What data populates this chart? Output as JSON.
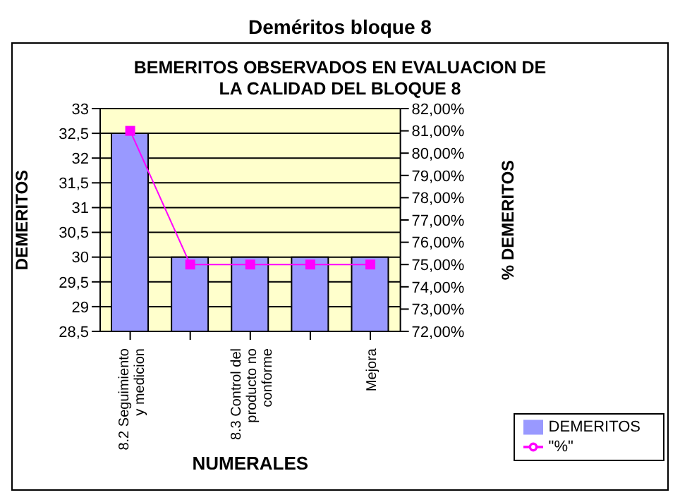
{
  "chart_data": {
    "type": "bar",
    "title": "Deméritos bloque 8",
    "subtitle": "BEMERITOS OBSERVADOS EN EVALUACION DE LA CALIDAD DEL BLOQUE 8",
    "xlabel": "NUMERALES",
    "ylabel": "DEMERITOS",
    "y2label": "% DEMERITOS",
    "categories": [
      "8.2 Seguimiento y medicion",
      null,
      "8.3 Control del producto no conforme",
      null,
      "Mejora"
    ],
    "series": [
      {
        "name": "DEMERITOS",
        "color": "#9999ff",
        "values": [
          32.5,
          30,
          30,
          30,
          30
        ]
      },
      {
        "name": "\"%\"",
        "type": "line",
        "axis": "y2",
        "color": "#ff00ff",
        "marker": "square",
        "values": [
          81,
          75,
          75,
          75,
          75
        ]
      }
    ],
    "ylim": [
      28.5,
      33
    ],
    "yticks": [
      {
        "value": 28.5,
        "label": "28,5"
      },
      29,
      {
        "value": 29.5,
        "label": "29,5"
      },
      30,
      {
        "value": 30.5,
        "label": "30,5"
      },
      31,
      {
        "value": 31.5,
        "label": "31,5"
      },
      32,
      {
        "value": 32.5,
        "label": "32,5"
      },
      33
    ],
    "y2lim": [
      72,
      82
    ],
    "y2ticks": [
      {
        "value": 72,
        "label": "72,00%"
      },
      {
        "value": 73,
        "label": "73,00%"
      },
      {
        "value": 74,
        "label": "74,00%"
      },
      {
        "value": 75,
        "label": "75,00%"
      },
      {
        "value": 76,
        "label": "76,00%"
      },
      {
        "value": 77,
        "label": "77,00%"
      },
      {
        "value": 78,
        "label": "78,00%"
      },
      {
        "value": 79,
        "label": "79,00%"
      },
      {
        "value": 80,
        "label": "80,00%"
      },
      {
        "value": 81,
        "label": "81,00%"
      },
      {
        "value": 82,
        "label": "82,00%"
      }
    ],
    "grid": "y",
    "legend": "bottom right"
  }
}
